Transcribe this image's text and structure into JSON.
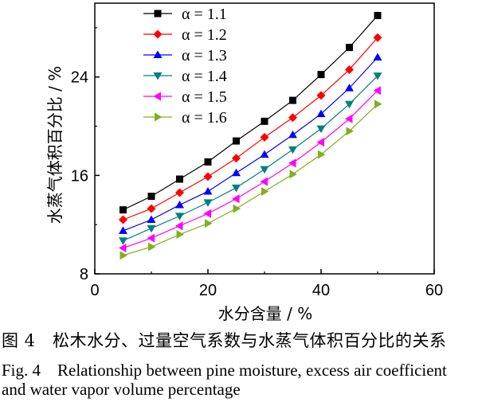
{
  "chart_data": {
    "type": "line",
    "xlabel": "水分含量 / %",
    "ylabel": "水蒸气体积百分比 / %",
    "xlim": [
      0,
      60
    ],
    "ylim": [
      8,
      30
    ],
    "xticks": [
      "0",
      "20",
      "40",
      "60"
    ],
    "yticks": [
      "8",
      "16",
      "24"
    ],
    "grid": false,
    "legend_position": "top-left",
    "x": [
      5,
      10,
      15,
      20,
      25,
      30,
      35,
      40,
      45,
      50
    ],
    "series": [
      {
        "name": "α = 1.1",
        "marker": "square",
        "color": "#000000",
        "values": [
          13.2,
          14.3,
          15.7,
          17.1,
          18.8,
          20.4,
          22.1,
          24.2,
          26.4,
          29.0
        ]
      },
      {
        "name": "α = 1.2",
        "marker": "diamond",
        "color": "#ff0000",
        "values": [
          12.4,
          13.3,
          14.6,
          15.9,
          17.4,
          19.1,
          20.7,
          22.5,
          24.6,
          27.2
        ]
      },
      {
        "name": "α = 1.3",
        "marker": "triangle-up",
        "color": "#0000ff",
        "values": [
          11.5,
          12.4,
          13.6,
          14.7,
          16.2,
          17.7,
          19.3,
          21.0,
          23.1,
          25.6
        ]
      },
      {
        "name": "α = 1.4",
        "marker": "triangle-down",
        "color": "#008080",
        "values": [
          10.7,
          11.7,
          12.7,
          13.8,
          15.0,
          16.5,
          18.1,
          19.8,
          21.8,
          24.1
        ]
      },
      {
        "name": "α = 1.5",
        "marker": "triangle-left",
        "color": "#ff00ff",
        "values": [
          10.1,
          10.9,
          11.9,
          12.9,
          14.1,
          15.5,
          17.0,
          18.7,
          20.6,
          22.9
        ]
      },
      {
        "name": "α = 1.6",
        "marker": "triangle-right",
        "color": "#80b020",
        "values": [
          9.5,
          10.2,
          11.2,
          12.1,
          13.3,
          14.7,
          16.1,
          17.7,
          19.6,
          21.8
        ]
      }
    ]
  },
  "caption": {
    "cn": "图 4　松木水分、过量空气系数与水蒸气体积百分比的关系",
    "en_line1": "Fig. 4　Relationship between pine moisture, excess air coefficient",
    "en_line2": "and water vapor volume percentage"
  }
}
